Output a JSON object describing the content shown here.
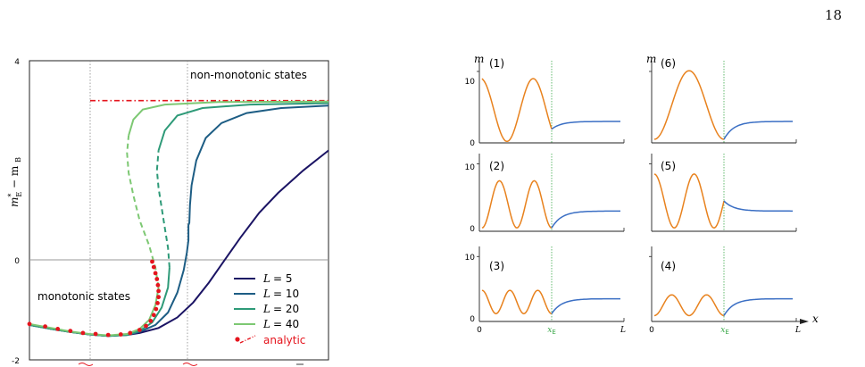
{
  "page": {
    "number": "18"
  },
  "chart_data": [
    {
      "type": "line",
      "ylabel_main": "m",
      "ylabel_sup": "*",
      "ylabel_sub": "E",
      "ylabel_rest": " − m",
      "ylabel_sub2": "B",
      "yticks": [
        "4",
        "0",
        "-2"
      ],
      "ylim": [
        -2,
        4
      ],
      "annotations": {
        "upper": "non-monotonic states",
        "lower": "monotonic states"
      },
      "analytic_plateau": 3.2,
      "legend_placement": "lower-right",
      "series": [
        {
          "name_prefix": "L",
          "name_value": "= 5",
          "color": "#1b1464",
          "points": [
            [
              -0.05,
              -1.3
            ],
            [
              0.02,
              -1.38
            ],
            [
              0.08,
              -1.44
            ],
            [
              0.14,
              -1.49
            ],
            [
              0.2,
              -1.52
            ],
            [
              0.26,
              -1.5
            ],
            [
              0.3,
              -1.46
            ],
            [
              0.36,
              -1.36
            ],
            [
              0.42,
              -1.15
            ],
            [
              0.47,
              -0.85
            ],
            [
              0.52,
              -0.45
            ],
            [
              0.57,
              0.0
            ],
            [
              0.62,
              0.45
            ],
            [
              0.68,
              0.95
            ],
            [
              0.74,
              1.35
            ],
            [
              0.82,
              1.8
            ],
            [
              0.9,
              2.2
            ]
          ]
        },
        {
          "name_prefix": "L",
          "name_value": "= 10",
          "color": "#1d5d84",
          "points": [
            [
              -0.05,
              -1.3
            ],
            [
              0.02,
              -1.38
            ],
            [
              0.08,
              -1.44
            ],
            [
              0.14,
              -1.49
            ],
            [
              0.2,
              -1.52
            ],
            [
              0.26,
              -1.5
            ],
            [
              0.3,
              -1.44
            ],
            [
              0.35,
              -1.3
            ],
            [
              0.39,
              -1.05
            ],
            [
              0.42,
              -0.65
            ],
            [
              0.44,
              -0.2
            ],
            [
              0.45,
              0.15
            ],
            [
              0.455,
              0.4
            ],
            [
              0.455,
              0.7
            ],
            [
              0.458,
              0.75
            ],
            [
              0.46,
              1.1
            ],
            [
              0.465,
              1.5
            ],
            [
              0.48,
              2.0
            ],
            [
              0.51,
              2.45
            ],
            [
              0.56,
              2.75
            ],
            [
              0.64,
              2.95
            ],
            [
              0.75,
              3.05
            ],
            [
              0.9,
              3.1
            ]
          ]
        },
        {
          "name_prefix": "L",
          "name_value": "= 20",
          "color": "#2e9a78",
          "points": [
            [
              -0.05,
              -1.3
            ],
            [
              0.02,
              -1.38
            ],
            [
              0.08,
              -1.44
            ],
            [
              0.14,
              -1.49
            ],
            [
              0.2,
              -1.52
            ],
            [
              0.26,
              -1.5
            ],
            [
              0.3,
              -1.42
            ],
            [
              0.34,
              -1.25
            ],
            [
              0.37,
              -0.95
            ],
            [
              0.39,
              -0.55
            ],
            [
              0.395,
              -0.15
            ],
            [
              0.39,
              0.25
            ],
            [
              0.38,
              0.65
            ],
            [
              0.37,
              1.05
            ],
            [
              0.36,
              1.45
            ],
            [
              0.355,
              1.8
            ],
            [
              0.36,
              2.2
            ],
            [
              0.38,
              2.6
            ],
            [
              0.42,
              2.9
            ],
            [
              0.5,
              3.05
            ],
            [
              0.65,
              3.12
            ],
            [
              0.9,
              3.15
            ]
          ]
        },
        {
          "name_prefix": "L",
          "name_value": "= 40",
          "color": "#7dc873",
          "points": [
            [
              -0.05,
              -1.28
            ],
            [
              0.02,
              -1.36
            ],
            [
              0.08,
              -1.43
            ],
            [
              0.14,
              -1.48
            ],
            [
              0.2,
              -1.51
            ],
            [
              0.26,
              -1.48
            ],
            [
              0.3,
              -1.38
            ],
            [
              0.33,
              -1.2
            ],
            [
              0.35,
              -0.9
            ],
            [
              0.36,
              -0.55
            ],
            [
              0.35,
              -0.15
            ],
            [
              0.33,
              0.3
            ],
            [
              0.3,
              0.8
            ],
            [
              0.28,
              1.3
            ],
            [
              0.265,
              1.75
            ],
            [
              0.26,
              2.15
            ],
            [
              0.265,
              2.5
            ],
            [
              0.28,
              2.82
            ],
            [
              0.31,
              3.02
            ],
            [
              0.38,
              3.12
            ],
            [
              0.55,
              3.17
            ],
            [
              0.9,
              3.18
            ]
          ]
        }
      ],
      "analytic": {
        "label": "analytic",
        "color": "#e5141d",
        "points": [
          [
            -0.05,
            -1.28
          ],
          [
            0.0,
            -1.33
          ],
          [
            0.04,
            -1.38
          ],
          [
            0.08,
            -1.42
          ],
          [
            0.12,
            -1.46
          ],
          [
            0.16,
            -1.48
          ],
          [
            0.2,
            -1.5
          ],
          [
            0.24,
            -1.49
          ],
          [
            0.27,
            -1.46
          ],
          [
            0.3,
            -1.4
          ],
          [
            0.32,
            -1.32
          ],
          [
            0.335,
            -1.22
          ],
          [
            0.345,
            -1.1
          ],
          [
            0.352,
            -0.98
          ],
          [
            0.357,
            -0.86
          ],
          [
            0.36,
            -0.74
          ],
          [
            0.36,
            -0.62
          ],
          [
            0.358,
            -0.5
          ],
          [
            0.355,
            -0.38
          ],
          [
            0.35,
            -0.26
          ],
          [
            0.345,
            -0.14
          ],
          [
            0.34,
            -0.03
          ]
        ]
      }
    },
    {
      "type": "line",
      "ylabel": "m",
      "xlabel": "x",
      "yticks": [
        "10",
        "0"
      ],
      "xticks": [
        "0",
        "L"
      ],
      "xE_label": "x",
      "xE_sub": "E",
      "panels": [
        {
          "label": "(1)",
          "left": "orange",
          "shape": "n1",
          "plateau": 3
        },
        {
          "label": "(6)",
          "left": "orange",
          "shape": "n6",
          "plateau": 3
        },
        {
          "label": "(2)",
          "left": "orange",
          "shape": "n2",
          "plateau": 3
        },
        {
          "label": "(5)",
          "left": "orange",
          "shape": "n5",
          "plateau": 3
        },
        {
          "label": "(3)",
          "left": "orange",
          "shape": "n3",
          "plateau": 3.5
        },
        {
          "label": "(4)",
          "left": "orange",
          "shape": "n4",
          "plateau": 3.5
        }
      ]
    }
  ]
}
